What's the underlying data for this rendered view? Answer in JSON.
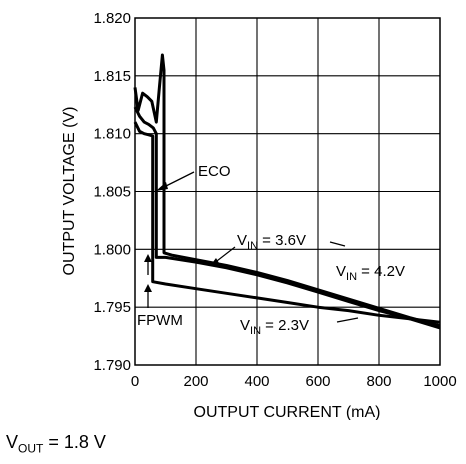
{
  "chart_data": {
    "type": "line",
    "title": "",
    "xlabel": "OUTPUT CURRENT (mA)",
    "ylabel": "OUTPUT VOLTAGE (V)",
    "xlim": [
      0,
      1000
    ],
    "ylim": [
      1.79,
      1.82
    ],
    "x_ticks": [
      "0",
      "200",
      "400",
      "600",
      "800",
      "1000"
    ],
    "y_ticks": [
      "1.790",
      "1.795",
      "1.800",
      "1.805",
      "1.810",
      "1.815",
      "1.820"
    ],
    "grid": true,
    "annotations": {
      "eco": "ECO",
      "fpwm": "FPWM",
      "vin_36": {
        "main": "V",
        "sub": "IN",
        "rest": " = 3.6V"
      },
      "vin_42": {
        "main": "V",
        "sub": "IN",
        "rest": " = 4.2V"
      },
      "vin_23": {
        "main": "V",
        "sub": "IN",
        "rest": " = 2.3V"
      }
    },
    "series": [
      {
        "name": "VIN = 3.6V",
        "x": [
          0,
          15,
          30,
          45,
          60,
          70,
          70,
          100,
          200,
          300,
          400,
          500,
          600,
          700,
          800,
          900,
          1000
        ],
        "y": [
          1.8123,
          1.8115,
          1.811,
          1.8108,
          1.8105,
          1.81,
          1.7993,
          1.7993,
          1.7989,
          1.7984,
          1.7978,
          1.7971,
          1.7963,
          1.7955,
          1.7947,
          1.794,
          1.7932
        ]
      },
      {
        "name": "VIN = 4.2V",
        "x": [
          0,
          10,
          25,
          40,
          55,
          70,
          80,
          90,
          95,
          95,
          120,
          200,
          300,
          400,
          500,
          600,
          700,
          800,
          900,
          1000
        ],
        "y": [
          1.814,
          1.812,
          1.8135,
          1.8132,
          1.8128,
          1.811,
          1.814,
          1.8168,
          1.8155,
          1.7997,
          1.7995,
          1.7991,
          1.7986,
          1.798,
          1.7973,
          1.7965,
          1.7957,
          1.7949,
          1.7941,
          1.7934
        ]
      },
      {
        "name": "VIN = 2.3V",
        "x": [
          0,
          15,
          30,
          45,
          58,
          58,
          100,
          200,
          300,
          400,
          500,
          600,
          700,
          800,
          900,
          1000
        ],
        "y": [
          1.811,
          1.8102,
          1.81,
          1.8099,
          1.8098,
          1.7972,
          1.797,
          1.7966,
          1.7962,
          1.7958,
          1.7954,
          1.795,
          1.7947,
          1.7943,
          1.794,
          1.7937
        ]
      }
    ],
    "footer": {
      "main": "V",
      "sub": "OUT",
      "rest": " = 1.8 V"
    }
  }
}
